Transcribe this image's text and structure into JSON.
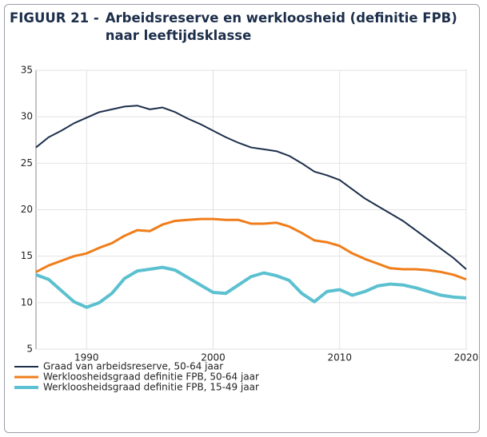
{
  "chart_data": {
    "type": "line",
    "label": "FIGUUR 21 -",
    "title": "Arbeidsreserve en werkloosheid (definitie FPB) naar leeftijdsklasse",
    "x": [
      1986,
      1987,
      1988,
      1989,
      1990,
      1991,
      1992,
      1993,
      1994,
      1995,
      1996,
      1997,
      1998,
      1999,
      2000,
      2001,
      2002,
      2003,
      2004,
      2005,
      2006,
      2007,
      2008,
      2009,
      2010,
      2011,
      2012,
      2013,
      2014,
      2015,
      2016,
      2017,
      2018,
      2019,
      2020
    ],
    "series": [
      {
        "name": "Graad van arbeidsreserve, 50-64 jaar",
        "color": "#1c2e4a",
        "width": 2,
        "values": [
          26.7,
          27.8,
          28.5,
          29.3,
          29.9,
          30.5,
          30.8,
          31.1,
          31.2,
          30.8,
          31.0,
          30.5,
          29.8,
          29.2,
          28.5,
          27.8,
          27.2,
          26.7,
          26.5,
          26.3,
          25.8,
          25.0,
          24.1,
          23.7,
          23.2,
          22.2,
          21.2,
          20.4,
          19.6,
          18.8,
          17.8,
          16.8,
          15.8,
          14.8,
          13.6
        ]
      },
      {
        "name": "Werkloosheidsgraad definitie FPB, 50-64 jaar",
        "color": "#f07d1a",
        "width": 3,
        "values": [
          13.3,
          14.0,
          14.5,
          15.0,
          15.3,
          15.9,
          16.4,
          17.2,
          17.8,
          17.7,
          18.4,
          18.8,
          18.9,
          19.0,
          19.0,
          18.9,
          18.9,
          18.5,
          18.5,
          18.6,
          18.2,
          17.5,
          16.7,
          16.5,
          16.1,
          15.3,
          14.7,
          14.2,
          13.7,
          13.6,
          13.6,
          13.5,
          13.3,
          13.0,
          12.5
        ]
      },
      {
        "name": "Werkloosheidsgraad definitie FPB, 15-49 jaar",
        "color": "#5bc0d0",
        "width": 4,
        "values": [
          13.0,
          12.5,
          11.3,
          10.1,
          9.5,
          10.0,
          11.0,
          12.6,
          13.4,
          13.6,
          13.8,
          13.5,
          12.7,
          11.9,
          11.1,
          11.0,
          11.9,
          12.8,
          13.2,
          12.9,
          12.4,
          11.0,
          10.1,
          11.2,
          11.4,
          10.8,
          11.2,
          11.8,
          12.0,
          11.9,
          11.6,
          11.2,
          10.8,
          10.6,
          10.5
        ]
      }
    ],
    "xlim": [
      1986,
      2020
    ],
    "xticks": [
      1990,
      2000,
      2010,
      2020
    ],
    "ylim": [
      5,
      35
    ],
    "yticks": [
      5,
      10,
      15,
      20,
      25,
      30,
      35
    ],
    "grid": true
  }
}
